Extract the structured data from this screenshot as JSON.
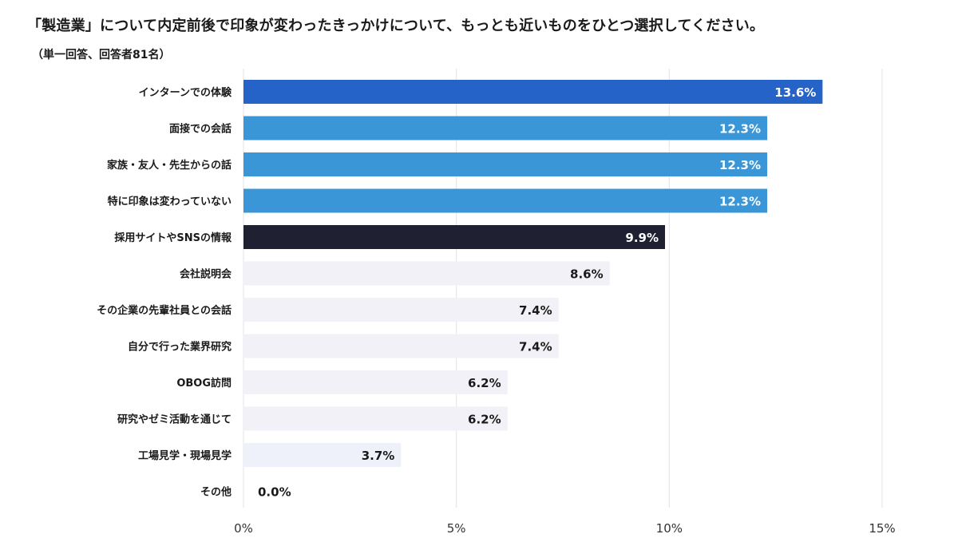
{
  "title": "「製造業」について内定前後で印象が変わったきっかけについて、もっとも近いものをひとつ選択してください。",
  "subtitle": "（単一回答、回答者81名）",
  "chart_data": {
    "type": "bar",
    "orientation": "horizontal",
    "categories": [
      "インターンでの体験",
      "面接での会話",
      "家族・友人・先生からの話",
      "特に印象は変わっていない",
      "採用サイトやSNSの情報",
      "会社説明会",
      "その企業の先輩社員との会話",
      "自分で行った業界研究",
      "OBOG訪問",
      "研究やゼミ活動を通じて",
      "工場見学・現場見学",
      "その他"
    ],
    "values": [
      13.6,
      12.3,
      12.3,
      12.3,
      9.9,
      8.6,
      7.4,
      7.4,
      6.2,
      6.2,
      3.7,
      0.0
    ],
    "data_labels": [
      "13.6%",
      "12.3%",
      "12.3%",
      "12.3%",
      "9.9%",
      "8.6%",
      "7.4%",
      "7.4%",
      "6.2%",
      "6.2%",
      "3.7%",
      "0.0%"
    ],
    "bar_colors": [
      "#2563c9",
      "#3a96d6",
      "#3a96d6",
      "#3a96d6",
      "#1f2133",
      "#f2f1f7",
      "#f2f1f7",
      "#f2f1f7",
      "#f2f1f7",
      "#f2f1f7",
      "#eff1fa",
      "#f2f1f7"
    ],
    "label_colors": [
      "#ffffff",
      "#ffffff",
      "#ffffff",
      "#ffffff",
      "#ffffff",
      "#1a1a1a",
      "#1a1a1a",
      "#1a1a1a",
      "#1a1a1a",
      "#1a1a1a",
      "#1a1a1a",
      "#1a1a1a"
    ],
    "x_ticks": [
      0,
      5,
      10,
      15
    ],
    "x_tick_labels": [
      "0%",
      "5%",
      "10%",
      "15%"
    ],
    "xlim": [
      0,
      15
    ],
    "grid": true
  }
}
